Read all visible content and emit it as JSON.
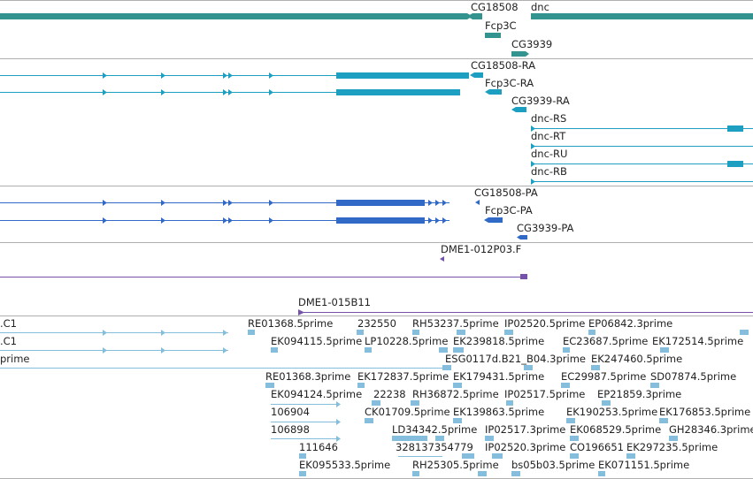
{
  "colors": {
    "gene": "#33938f",
    "transcript": "#1c9fc1",
    "protein": "#3069c6",
    "clone": "#7752aa",
    "est": "#84bedc",
    "divider": "#b0b0b0"
  },
  "tracks": {
    "genes": {
      "labels": [
        "CG18508",
        "dnc",
        "Fcp3C",
        "CG3939"
      ]
    },
    "transcripts": {
      "labels": [
        "CG18508-RA",
        "Fcp3C-RA",
        "CG3939-RA",
        "dnc-RS",
        "dnc-RT",
        "dnc-RU",
        "dnc-RB"
      ]
    },
    "proteins": {
      "labels": [
        "CG18508-PA",
        "Fcp3C-PA",
        "CG3939-PA"
      ]
    },
    "clones": {
      "labels": [
        "DME1-012P03.F",
        "DME1-015B11"
      ]
    },
    "ests": {
      "labels": [
        ".C1",
        "RE01368.5prime",
        "232550",
        "RH53237.5prime",
        "IP02520.5prime",
        "EP06842.3prime",
        ".C1",
        "EK094115.5prime",
        "LP10228.5prime",
        "EK239818.5prime",
        "EC23687.5prime",
        "EK172514.5prime",
        "prime",
        "ESG0117d.B21_B04.3prime",
        "EK247460.5prime",
        "RE01368.3prime",
        "EK172837.5prime",
        "EK179431.5prime",
        "EC29987.5prime",
        "SD07874.5prime",
        "EK094124.5prime",
        "22238",
        "RH36872.5prime",
        "IP02517.5prime",
        "EP21859.3prime",
        "106904",
        "CK01709.5prime",
        "EK139863.5prime",
        "EK190253.5prime",
        "EK176853.5prime",
        "106898",
        "LD34342.5prime",
        "IP02517.3prime",
        "EK068529.5prime",
        "GH28346.3prime",
        "111646",
        "328137354779",
        "IP02520.3prime",
        "CO196651",
        "EK297235.5prime",
        "EK095533.5prime",
        "RH25305.5prime",
        "bs05b03.5prime",
        "EK071151.5prime"
      ]
    }
  }
}
